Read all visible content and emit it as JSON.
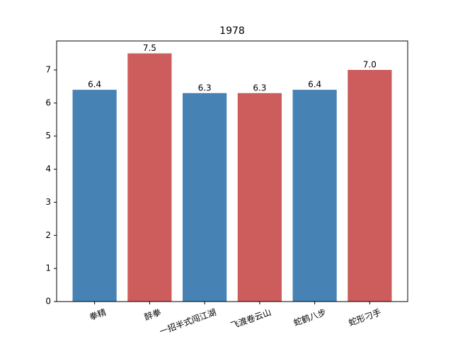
{
  "chart_data": {
    "type": "bar",
    "title": "1978",
    "categories": [
      "拳精",
      "醉拳",
      "一招半式闯江湖",
      "飞渡卷云山",
      "蛇鹤八步",
      "蛇形刁手"
    ],
    "values": [
      6.4,
      7.5,
      6.3,
      6.3,
      6.4,
      7.0
    ],
    "value_labels": [
      "6.4",
      "7.5",
      "6.3",
      "6.3",
      "6.4",
      "7.0"
    ],
    "colors": [
      "#4682b4",
      "#cd5c5c",
      "#4682b4",
      "#cd5c5c",
      "#4682b4",
      "#cd5c5c"
    ],
    "ylim": [
      0,
      7.875
    ],
    "yticks": [
      0,
      1,
      2,
      3,
      4,
      5,
      6,
      7
    ]
  }
}
